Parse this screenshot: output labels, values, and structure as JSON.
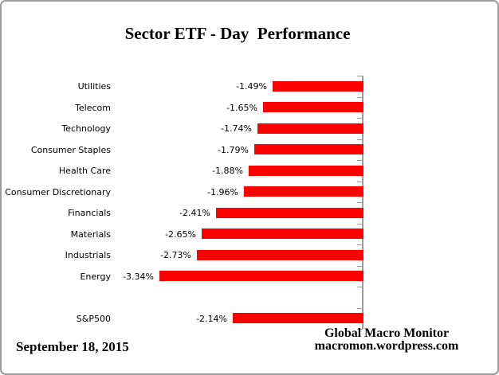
{
  "chart_data": {
    "type": "bar",
    "orientation": "horizontal",
    "title": "Sector ETF - Day  Performance",
    "bar_color": "#FF0000",
    "axis_color": "#9B9B9B",
    "gridlines": false,
    "legend": "none",
    "value_axis": {
      "min": -3.5,
      "max": 0,
      "tick_labels_visible": false
    },
    "rows": [
      {
        "category": "Utilities",
        "value": -1.49,
        "label": "-1.49%"
      },
      {
        "category": "Telecom",
        "value": -1.65,
        "label": "-1.65%"
      },
      {
        "category": "Technology",
        "value": -1.74,
        "label": "-1.74%"
      },
      {
        "category": "Consumer Staples",
        "value": -1.79,
        "label": "-1.79%"
      },
      {
        "category": "Health Care",
        "value": -1.88,
        "label": "-1.88%"
      },
      {
        "category": "Consumer Discretionary",
        "value": -1.96,
        "label": "-1.96%"
      },
      {
        "category": "Financials",
        "value": -2.41,
        "label": "-2.41%"
      },
      {
        "category": "Materials",
        "value": -2.65,
        "label": "-2.65%"
      },
      {
        "category": "Industrials",
        "value": -2.73,
        "label": "-2.73%"
      },
      {
        "category": "Energy",
        "value": -3.34,
        "label": "-3.34%"
      },
      {
        "category": "",
        "value": null,
        "label": ""
      },
      {
        "category": "S&P500",
        "value": -2.14,
        "label": "-2.14%"
      }
    ]
  },
  "footer": {
    "date": "September 18, 2015",
    "credit_line1": "Global Macro Monitor",
    "credit_line2": "macromon.wordpress.com"
  }
}
